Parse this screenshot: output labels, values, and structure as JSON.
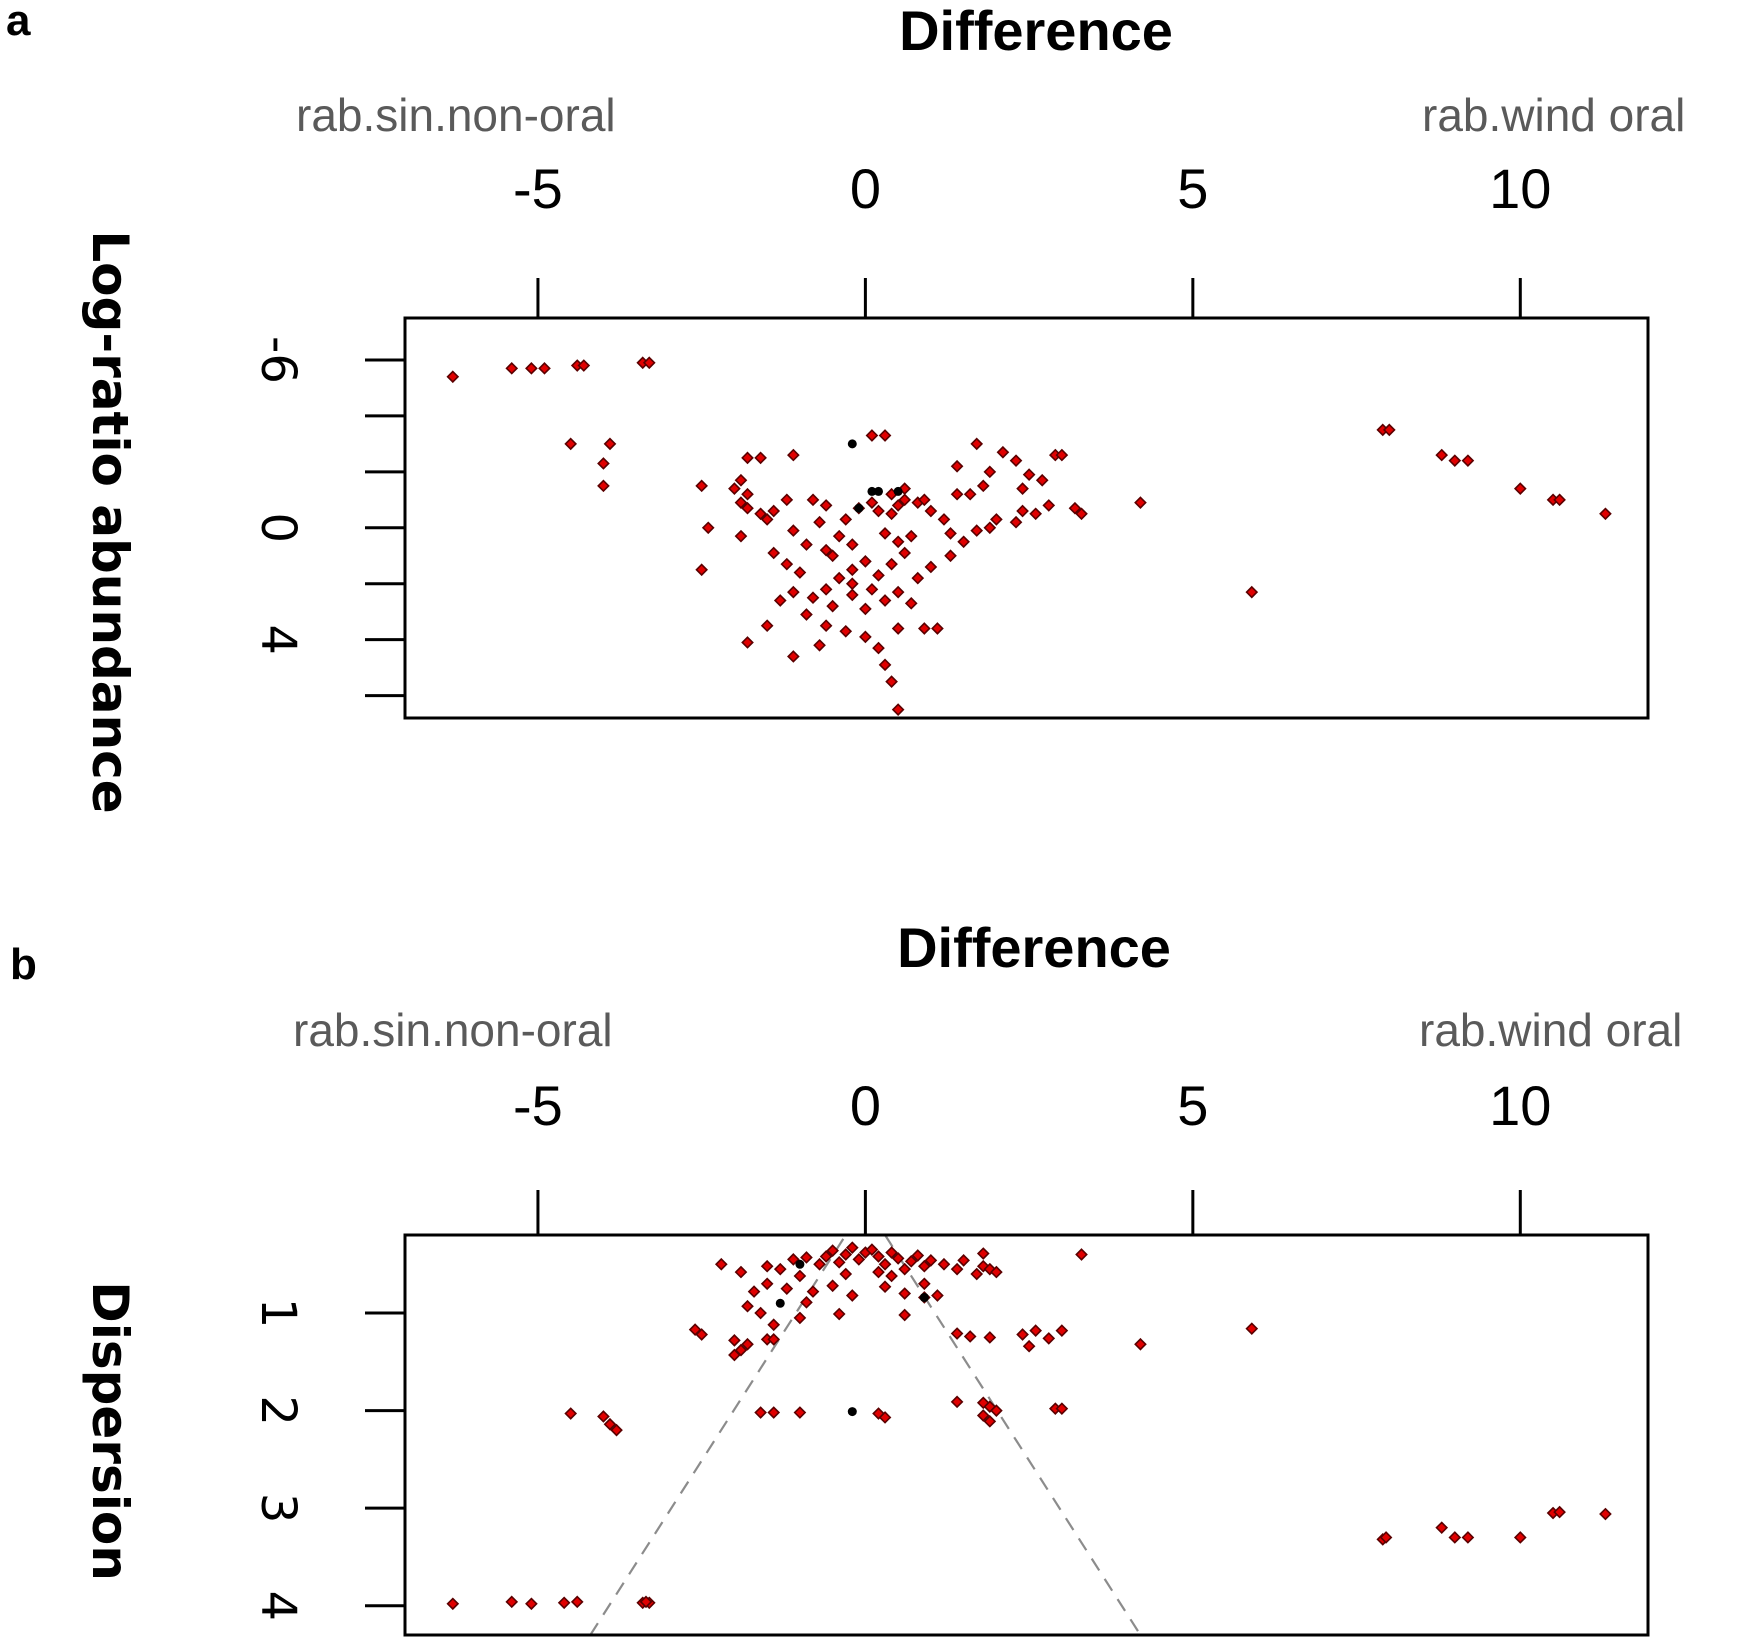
{
  "chart_data": [
    {
      "type": "scatter",
      "panel": "a",
      "title": "Difference",
      "xlabel": "Difference",
      "ylabel": "Log-ratio abundance",
      "group_left": "rab.sin.non-oral",
      "group_right": "rab.wind oral",
      "xlim": [
        -7.03,
        11.95
      ],
      "ylim": [
        -7.5,
        6.8
      ],
      "y_inverted": true,
      "xticks": [
        -5,
        0,
        5,
        10
      ],
      "xtick_labels": [
        "-5",
        "0",
        "5",
        "10"
      ],
      "yticks": [
        -6,
        -4,
        -2,
        0,
        2,
        4,
        6
      ],
      "ytick_labels": [
        {
          "value": -6,
          "label": "-6"
        },
        {
          "value": 0,
          "label": "0"
        },
        {
          "value": 4,
          "label": "4"
        }
      ],
      "grid": false,
      "colors": {
        "point": "#e00000",
        "point_edge": "#5a0000",
        "sig_black": "#000000",
        "axis": "#000000"
      },
      "series": [
        {
          "name": "features",
          "color": "#e00000",
          "points": [
            [
              -6.3,
              -5.4
            ],
            [
              -5.4,
              -5.7
            ],
            [
              -5.1,
              -5.7
            ],
            [
              -4.9,
              -5.7
            ],
            [
              -4.4,
              -5.8
            ],
            [
              -4.3,
              -5.8
            ],
            [
              -3.4,
              -5.9
            ],
            [
              -3.3,
              -5.9
            ],
            [
              -4.5,
              -3.0
            ],
            [
              -3.9,
              -3.0
            ],
            [
              -4.0,
              -2.3
            ],
            [
              -4.0,
              -1.5
            ],
            [
              7.9,
              -3.5
            ],
            [
              8.0,
              -3.5
            ],
            [
              8.8,
              -2.6
            ],
            [
              9.0,
              -2.4
            ],
            [
              9.2,
              -2.4
            ],
            [
              10.0,
              -1.4
            ],
            [
              10.5,
              -1.0
            ],
            [
              10.6,
              -1.0
            ],
            [
              11.3,
              -0.5
            ],
            [
              5.9,
              2.3
            ],
            [
              4.2,
              -0.9
            ],
            [
              -2.5,
              -1.5
            ],
            [
              -2.4,
              0.0
            ],
            [
              -2.5,
              1.5
            ],
            [
              -1.8,
              -2.5
            ],
            [
              -1.6,
              -2.5
            ],
            [
              -1.1,
              -2.6
            ],
            [
              -1.9,
              -1.7
            ],
            [
              -2.0,
              -1.4
            ],
            [
              -1.8,
              -1.2
            ],
            [
              -1.8,
              -0.7
            ],
            [
              -1.6,
              -0.5
            ],
            [
              -1.5,
              -0.3
            ],
            [
              -1.9,
              -0.9
            ],
            [
              -1.4,
              -0.6
            ],
            [
              -1.2,
              -1.0
            ],
            [
              -0.8,
              -1.0
            ],
            [
              -0.6,
              -0.8
            ],
            [
              -1.9,
              0.3
            ],
            [
              -1.4,
              0.9
            ],
            [
              -1.1,
              0.1
            ],
            [
              -0.7,
              -0.2
            ],
            [
              -0.6,
              0.8
            ],
            [
              -0.4,
              0.3
            ],
            [
              -0.3,
              -0.3
            ],
            [
              -0.2,
              0.6
            ],
            [
              -0.1,
              -0.7
            ],
            [
              0.1,
              -0.9
            ],
            [
              0.2,
              -0.6
            ],
            [
              0.4,
              -0.5
            ],
            [
              0.5,
              -0.8
            ],
            [
              0.6,
              -1.0
            ],
            [
              0.8,
              -0.9
            ],
            [
              0.3,
              0.2
            ],
            [
              0.5,
              0.5
            ],
            [
              0.7,
              0.3
            ],
            [
              0.6,
              0.9
            ],
            [
              0.4,
              1.3
            ],
            [
              0.2,
              1.7
            ],
            [
              0.0,
              1.2
            ],
            [
              -0.2,
              1.5
            ],
            [
              -0.4,
              1.8
            ],
            [
              -0.6,
              2.2
            ],
            [
              -0.8,
              2.5
            ],
            [
              -0.5,
              2.8
            ],
            [
              -0.2,
              2.4
            ],
            [
              0.0,
              2.9
            ],
            [
              0.1,
              2.2
            ],
            [
              0.3,
              2.6
            ],
            [
              0.5,
              2.3
            ],
            [
              0.8,
              1.8
            ],
            [
              -1.0,
              1.6
            ],
            [
              -1.1,
              2.3
            ],
            [
              -1.3,
              2.6
            ],
            [
              -0.9,
              3.1
            ],
            [
              -0.6,
              3.5
            ],
            [
              -0.3,
              3.7
            ],
            [
              0.0,
              3.9
            ],
            [
              0.2,
              4.3
            ],
            [
              0.3,
              4.9
            ],
            [
              0.4,
              5.5
            ],
            [
              0.5,
              6.5
            ],
            [
              -0.7,
              4.2
            ],
            [
              -1.1,
              4.6
            ],
            [
              -1.5,
              3.5
            ],
            [
              -1.8,
              4.1
            ],
            [
              0.5,
              3.6
            ],
            [
              0.9,
              3.6
            ],
            [
              1.1,
              3.6
            ],
            [
              1.0,
              1.4
            ],
            [
              1.3,
              1.0
            ],
            [
              1.5,
              0.5
            ],
            [
              1.7,
              0.1
            ],
            [
              1.3,
              0.2
            ],
            [
              1.9,
              0.0
            ],
            [
              2.0,
              -0.3
            ],
            [
              2.3,
              -0.2
            ],
            [
              2.6,
              -0.5
            ],
            [
              2.4,
              -0.6
            ],
            [
              2.8,
              -0.8
            ],
            [
              1.4,
              -1.2
            ],
            [
              1.6,
              -1.2
            ],
            [
              1.9,
              -2.0
            ],
            [
              2.4,
              -1.4
            ],
            [
              2.5,
              -1.9
            ],
            [
              2.9,
              -2.6
            ],
            [
              3.0,
              -2.6
            ],
            [
              3.2,
              -0.7
            ],
            [
              3.3,
              -0.5
            ],
            [
              1.7,
              -3.0
            ],
            [
              1.8,
              -1.5
            ],
            [
              2.1,
              -2.7
            ],
            [
              2.3,
              -2.4
            ],
            [
              1.4,
              -2.2
            ],
            [
              2.7,
              -1.7
            ],
            [
              1.2,
              -0.3
            ],
            [
              1.0,
              -0.6
            ],
            [
              0.4,
              -1.2
            ],
            [
              0.6,
              -1.4
            ],
            [
              0.9,
              -1.0
            ],
            [
              0.1,
              -3.3
            ],
            [
              0.3,
              -3.3
            ],
            [
              -0.2,
              2.0
            ],
            [
              -0.5,
              1.0
            ],
            [
              -0.9,
              0.6
            ],
            [
              -1.2,
              1.3
            ],
            [
              0.7,
              2.7
            ]
          ]
        },
        {
          "name": "black-features",
          "color": "#000000",
          "points": [
            [
              -0.2,
              -3.0
            ],
            [
              0.1,
              -1.3
            ],
            [
              0.2,
              -1.3
            ],
            [
              0.5,
              -1.3
            ],
            [
              -0.1,
              -0.7
            ]
          ]
        }
      ]
    },
    {
      "type": "scatter",
      "panel": "b",
      "title": "Difference",
      "xlabel": "Difference",
      "ylabel": "Dispersion",
      "group_left": "rab.sin.non-oral",
      "group_right": "rab.wind oral",
      "xlim": [
        -7.03,
        11.95
      ],
      "ylim": [
        0.2,
        4.3
      ],
      "y_inverted": true,
      "xticks": [
        -5,
        0,
        5,
        10
      ],
      "xtick_labels": [
        "-5",
        "0",
        "5",
        "10"
      ],
      "yticks": [
        1,
        2,
        3,
        4
      ],
      "ytick_labels": [
        {
          "value": 1,
          "label": "1"
        },
        {
          "value": 2,
          "label": "2"
        },
        {
          "value": 3,
          "label": "3"
        },
        {
          "value": 4,
          "label": "4"
        }
      ],
      "reference_lines": [
        {
          "from": [
            -4.2,
            4.3
          ],
          "to": [
            -0.3,
            0.2
          ]
        },
        {
          "from": [
            0.3,
            0.2
          ],
          "to": [
            4.2,
            4.3
          ]
        }
      ],
      "grid": false,
      "colors": {
        "point": "#e00000",
        "point_edge": "#5a0000",
        "sig_black": "#000000",
        "reference_line": "#8c8c8c",
        "axis": "#000000"
      },
      "series": [
        {
          "name": "features",
          "color": "#e00000",
          "points": [
            [
              -6.3,
              3.98
            ],
            [
              -5.4,
              3.96
            ],
            [
              -5.1,
              3.98
            ],
            [
              -4.6,
              3.97
            ],
            [
              -4.4,
              3.96
            ],
            [
              -3.4,
              3.97
            ],
            [
              -3.3,
              3.97
            ],
            [
              -3.35,
              3.96
            ],
            [
              -4.5,
              2.03
            ],
            [
              -4.0,
              2.06
            ],
            [
              -3.9,
              2.14
            ],
            [
              -3.8,
              2.2
            ],
            [
              7.9,
              3.32
            ],
            [
              7.95,
              3.3
            ],
            [
              8.8,
              3.2
            ],
            [
              9.0,
              3.3
            ],
            [
              9.2,
              3.3
            ],
            [
              10.0,
              3.3
            ],
            [
              10.5,
              3.05
            ],
            [
              10.6,
              3.04
            ],
            [
              11.3,
              3.06
            ],
            [
              5.9,
              1.16
            ],
            [
              4.2,
              1.32
            ],
            [
              -2.6,
              1.17
            ],
            [
              -2.5,
              1.22
            ],
            [
              -2.0,
              1.28
            ],
            [
              -1.9,
              1.38
            ],
            [
              -2.0,
              1.43
            ],
            [
              -1.8,
              1.32
            ],
            [
              -1.5,
              1.27
            ],
            [
              -1.4,
              1.27
            ],
            [
              -1.6,
              2.02
            ],
            [
              -1.4,
              2.02
            ],
            [
              -1.0,
              2.02
            ],
            [
              0.2,
              2.03
            ],
            [
              0.3,
              2.07
            ],
            [
              1.4,
              1.91
            ],
            [
              1.8,
              1.92
            ],
            [
              1.9,
              1.96
            ],
            [
              2.0,
              2.0
            ],
            [
              1.8,
              2.05
            ],
            [
              1.9,
              2.11
            ],
            [
              2.9,
              1.98
            ],
            [
              3.0,
              1.98
            ],
            [
              1.4,
              1.21
            ],
            [
              1.6,
              1.24
            ],
            [
              1.9,
              1.25
            ],
            [
              2.4,
              1.22
            ],
            [
              2.5,
              1.34
            ],
            [
              2.6,
              1.18
            ],
            [
              2.8,
              1.26
            ],
            [
              3.0,
              1.18
            ],
            [
              -1.9,
              0.58
            ],
            [
              -1.5,
              0.52
            ],
            [
              -1.3,
              0.55
            ],
            [
              -1.1,
              0.45
            ],
            [
              -1.0,
              0.62
            ],
            [
              -0.9,
              0.43
            ],
            [
              -0.7,
              0.5
            ],
            [
              -0.6,
              0.42
            ],
            [
              -0.5,
              0.36
            ],
            [
              -0.4,
              0.48
            ],
            [
              -0.3,
              0.4
            ],
            [
              -0.2,
              0.33
            ],
            [
              -0.1,
              0.45
            ],
            [
              0.0,
              0.38
            ],
            [
              0.1,
              0.35
            ],
            [
              0.2,
              0.42
            ],
            [
              0.3,
              0.5
            ],
            [
              0.4,
              0.38
            ],
            [
              0.5,
              0.44
            ],
            [
              0.6,
              0.55
            ],
            [
              0.7,
              0.47
            ],
            [
              0.8,
              0.41
            ],
            [
              0.9,
              0.52
            ],
            [
              1.0,
              0.46
            ],
            [
              1.2,
              0.5
            ],
            [
              1.4,
              0.55
            ],
            [
              1.5,
              0.46
            ],
            [
              1.7,
              0.6
            ],
            [
              1.8,
              0.52
            ],
            [
              1.9,
              0.55
            ],
            [
              2.0,
              0.58
            ],
            [
              1.8,
              0.39
            ],
            [
              -1.5,
              0.7
            ],
            [
              -1.2,
              0.75
            ],
            [
              -0.8,
              0.78
            ],
            [
              -0.5,
              0.72
            ],
            [
              -0.2,
              0.82
            ],
            [
              0.3,
              0.73
            ],
            [
              0.6,
              0.8
            ],
            [
              0.9,
              0.7
            ],
            [
              -1.8,
              0.93
            ],
            [
              -1.6,
              1.0
            ],
            [
              -1.4,
              1.12
            ],
            [
              -1.0,
              1.05
            ],
            [
              -0.4,
              1.01
            ],
            [
              0.6,
              1.02
            ],
            [
              0.9,
              0.84
            ],
            [
              1.1,
              0.82
            ],
            [
              -0.9,
              0.89
            ],
            [
              -0.3,
              0.6
            ],
            [
              0.2,
              0.58
            ],
            [
              0.4,
              0.62
            ],
            [
              -1.7,
              0.78
            ],
            [
              -2.2,
              0.5
            ],
            [
              3.3,
              0.4
            ]
          ]
        },
        {
          "name": "black-features",
          "color": "#000000",
          "points": [
            [
              -0.2,
              2.01
            ],
            [
              -1.3,
              0.9
            ],
            [
              0.9,
              0.84
            ],
            [
              -1.0,
              0.5
            ]
          ]
        }
      ]
    }
  ],
  "panels": {
    "a": {
      "letter": "a",
      "title": "Difference",
      "left_label": "rab.sin.non-oral",
      "right_label": "rab.wind oral",
      "ylabel": "Log-ratio abundance"
    },
    "b": {
      "letter": "b",
      "title": "Difference",
      "left_label": "rab.sin.non-oral",
      "right_label": "rab.wind oral",
      "ylabel": "Dispersion"
    }
  }
}
